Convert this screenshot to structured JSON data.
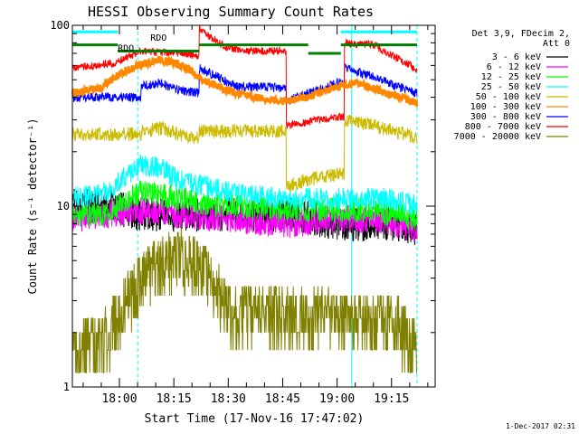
{
  "chart_data": {
    "type": "line",
    "title": "HESSI Observing Summary Count Rates",
    "xlabel": "Start Time (17-Nov-16 17:47:02)",
    "ylabel": "Count Rate (s⁻¹ detector⁻¹)",
    "yscale": "log",
    "ylim": [
      1,
      100
    ],
    "xlim_minutes": [
      0,
      100
    ],
    "x_ticks": [
      {
        "label": "18:00",
        "minutes": 12.97
      },
      {
        "label": "18:15",
        "minutes": 27.97
      },
      {
        "label": "18:30",
        "minutes": 42.97
      },
      {
        "label": "18:45",
        "minutes": 57.97
      },
      {
        "label": "19:00",
        "minutes": 72.97
      },
      {
        "label": "19:15",
        "minutes": 87.97
      }
    ],
    "y_ticks": [
      {
        "label": "1",
        "value": 1
      },
      {
        "label": "10",
        "value": 10
      },
      {
        "label": "100",
        "value": 100
      }
    ],
    "legend_header": [
      "Det 3,9, FDecim 2,",
      "Att 0"
    ],
    "legend_placement": "right",
    "annotations": [
      {
        "text": "RDO",
        "minutes": 21.5,
        "value": 82
      },
      {
        "text": "RDO",
        "minutes": 12.5,
        "value": 72
      }
    ],
    "footer": "1-Dec-2017 02:31",
    "series": [
      {
        "name": "3 - 6 keV",
        "color": "#000000",
        "x": [
          0,
          10,
          19,
          29,
          43,
          58,
          60,
          73,
          83,
          88,
          95
        ],
        "y": [
          10,
          10,
          9,
          9,
          9,
          9,
          9,
          8,
          8,
          8,
          7.5
        ]
      },
      {
        "name": "6 - 12 keV",
        "color": "#ff00ff",
        "x": [
          0,
          10,
          19,
          29,
          43,
          58,
          60,
          73,
          83,
          88,
          95
        ],
        "y": [
          8.5,
          9,
          9.5,
          9,
          8.5,
          8,
          8,
          8.5,
          8.5,
          8,
          7.5
        ]
      },
      {
        "name": "12 - 25 keV",
        "color": "#00ff00",
        "x": [
          0,
          10,
          19,
          29,
          43,
          58,
          60,
          73,
          83,
          88,
          95
        ],
        "y": [
          9,
          9,
          12,
          11,
          10,
          9.5,
          9.5,
          9.5,
          9.5,
          9,
          8.5
        ]
      },
      {
        "name": "25 - 50 keV",
        "color": "#00ffff",
        "x": [
          0,
          10,
          19,
          25,
          29,
          43,
          58,
          60,
          73,
          83,
          88,
          95
        ],
        "y": [
          11,
          12,
          17,
          16,
          14,
          12,
          11,
          11,
          11,
          11,
          11,
          10
        ]
      },
      {
        "name": "50 - 100 keV",
        "color": "#ccbb00",
        "x": [
          0,
          18.9,
          19,
          25,
          29,
          34.9,
          35,
          58.9,
          59,
          65,
          73,
          74.9,
          75,
          83,
          88,
          95
        ],
        "y": [
          25,
          25,
          26,
          27,
          25,
          24,
          26,
          26,
          13,
          14,
          15,
          15,
          30,
          28,
          26,
          24
        ]
      },
      {
        "name": "100 - 300 keV",
        "color": "#ff8800",
        "x": [
          0,
          8,
          12,
          18,
          24,
          30,
          36,
          42,
          50,
          58,
          65,
          72,
          78,
          84,
          90,
          95
        ],
        "y": [
          42,
          45,
          52,
          60,
          65,
          60,
          50,
          44,
          40,
          38,
          40,
          45,
          48,
          44,
          40,
          37
        ]
      },
      {
        "name": "300 - 800 keV",
        "color": "#0000ff",
        "x": [
          0,
          18.9,
          19,
          24,
          29,
          34.9,
          35,
          38,
          45,
          58.9,
          59,
          65,
          73,
          74.9,
          75,
          83,
          88,
          95
        ],
        "y": [
          40,
          40,
          46,
          48,
          44,
          42,
          58,
          54,
          46,
          45,
          38,
          42,
          48,
          48,
          58,
          52,
          47,
          42
        ],
        "note_flat": true
      },
      {
        "name": "800 - 7000 keV",
        "color": "#ff0000",
        "x": [
          0,
          12,
          18.9,
          19,
          29,
          34.9,
          35,
          38,
          43,
          50,
          58.9,
          59,
          73,
          74.9,
          75,
          83,
          88,
          95
        ],
        "y": [
          58,
          62,
          72,
          72,
          70,
          68,
          95,
          85,
          75,
          72,
          72,
          28,
          31,
          31,
          80,
          78,
          68,
          57
        ]
      },
      {
        "name": "7000 - 20000 keV",
        "color": "#808000",
        "x": [
          0,
          10,
          14,
          18,
          24,
          28,
          33,
          38,
          43,
          50,
          58,
          65,
          73,
          80,
          85,
          90,
          95
        ],
        "y": [
          1.6,
          2.0,
          2.8,
          3.8,
          5.0,
          5.6,
          5.0,
          4.0,
          2.8,
          2.6,
          2.5,
          2.5,
          2.5,
          2.4,
          2.4,
          2.2,
          1.6
        ]
      }
    ],
    "state_bars": [
      {
        "color": "#008000",
        "segments": [
          {
            "x": [
              0,
              12.5
            ],
            "y": 78
          },
          {
            "x": [
              12.5,
              35
            ],
            "y": 72
          },
          {
            "x": [
              35,
              65
            ],
            "y": 78
          },
          {
            "x": [
              65,
              74
            ],
            "y": 70
          },
          {
            "x": [
              74,
              95
            ],
            "y": 78
          }
        ]
      },
      {
        "color": "#00ffff",
        "segments": [
          {
            "x": [
              0,
              12.5
            ],
            "y": 92
          },
          {
            "x": [
              74,
              95
            ],
            "y": 92
          }
        ]
      }
    ],
    "vertical_markers": [
      {
        "minutes": 0,
        "style": "solid",
        "color": "#00ffff"
      },
      {
        "minutes": 18,
        "style": "dashed",
        "color": "#00ffff"
      },
      {
        "minutes": 77,
        "style": "solid",
        "color": "#00ffff"
      },
      {
        "minutes": 95,
        "style": "dashed",
        "color": "#00ffff"
      }
    ]
  }
}
